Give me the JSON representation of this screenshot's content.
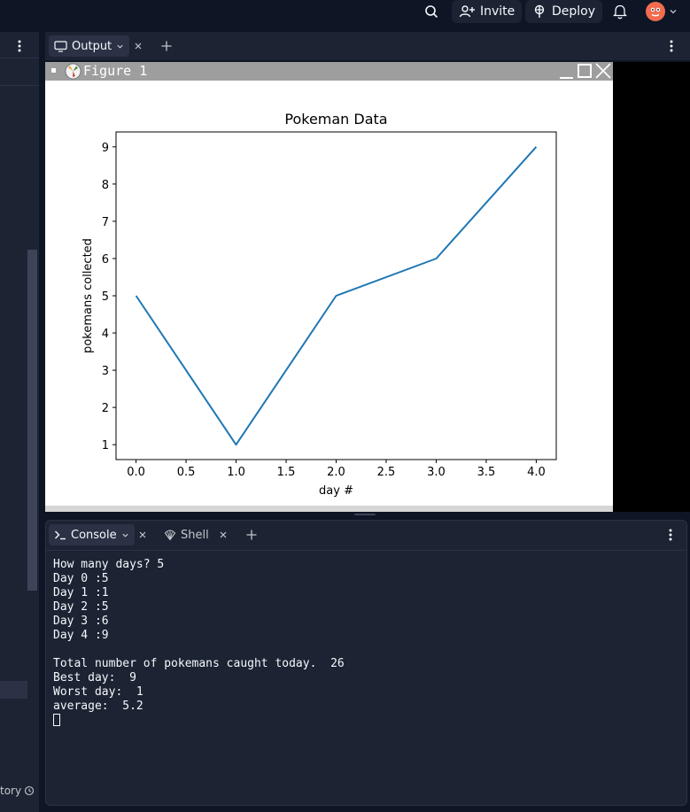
{
  "topbar": {
    "invite_label": "Invite",
    "deploy_label": "Deploy"
  },
  "left_panel": {
    "history_label": "tory"
  },
  "output_panel": {
    "tab_label": "Output"
  },
  "figure": {
    "window_title": "Figure 1"
  },
  "chart_data": {
    "type": "line",
    "title": "Pokeman Data",
    "xlabel": "day #",
    "ylabel": "pokemans collected",
    "x": [
      0,
      1,
      2,
      3,
      4
    ],
    "series": [
      {
        "values": [
          5,
          1,
          5,
          6,
          9
        ],
        "color": "#1f77b4"
      }
    ],
    "xlim": [
      -0.2,
      4.2
    ],
    "ylim": [
      0.6,
      9.4
    ],
    "xticks": [
      "0.0",
      "0.5",
      "1.0",
      "1.5",
      "2.0",
      "2.5",
      "3.0",
      "3.5",
      "4.0"
    ],
    "yticks": [
      "1",
      "2",
      "3",
      "4",
      "5",
      "6",
      "7",
      "8",
      "9"
    ],
    "grid": false
  },
  "console": {
    "tab_label": "Console",
    "shell_label": "Shell",
    "lines": [
      "How many days? 5",
      "Day 0 :5",
      "Day 1 :1",
      "Day 2 :5",
      "Day 3 :6",
      "Day 4 :9",
      "",
      "Total number of pokemans caught today.  26",
      "Best day:  9",
      "Worst day:  1",
      "average:  5.2"
    ]
  },
  "colors": {
    "accent": "#1f77b4",
    "background": "#0e1525",
    "surface": "#1c2333"
  }
}
